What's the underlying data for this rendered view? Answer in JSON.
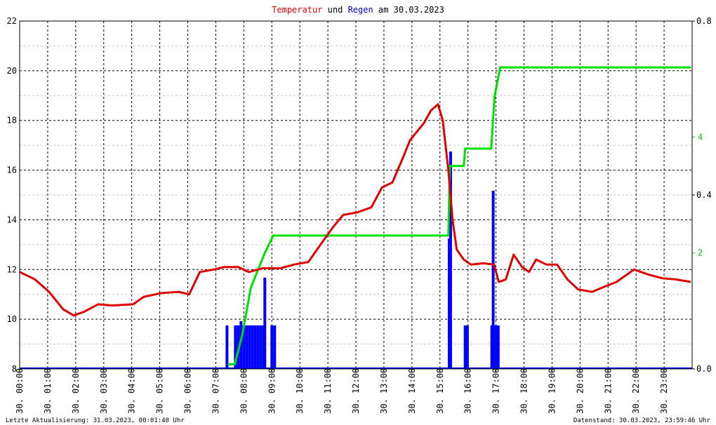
{
  "chart_data": {
    "type": "line",
    "title_parts": [
      {
        "text": "Temperatur",
        "color": "#e00000"
      },
      {
        "text": "und",
        "color": "#000000"
      },
      {
        "text": "Regen",
        "color": "#0000c0"
      },
      {
        "text": "am 30.03.2023",
        "color": "#000000"
      }
    ],
    "footer_left": "Letzte Aktualisierung: 31.03.2023, 00:01:40 Uhr",
    "footer_right": "Datenstand: 30.03.2023, 23:59:46 Uhr",
    "xlim": [
      0,
      24
    ],
    "xticks": [
      {
        "value": 0,
        "label": "30. 00:00"
      },
      {
        "value": 1,
        "label": "30. 01:00"
      },
      {
        "value": 2,
        "label": "30. 02:00"
      },
      {
        "value": 3,
        "label": "30. 03:00"
      },
      {
        "value": 4,
        "label": "30. 04:00"
      },
      {
        "value": 5,
        "label": "30. 05:00"
      },
      {
        "value": 6,
        "label": "30. 06:00"
      },
      {
        "value": 7,
        "label": "30. 07:00"
      },
      {
        "value": 8,
        "label": "30. 08:00"
      },
      {
        "value": 9,
        "label": "30. 09:00"
      },
      {
        "value": 10,
        "label": "30. 10:00"
      },
      {
        "value": 11,
        "label": "30. 11:00"
      },
      {
        "value": 12,
        "label": "30. 12:00"
      },
      {
        "value": 13,
        "label": "30. 13:00"
      },
      {
        "value": 14,
        "label": "30. 14:00"
      },
      {
        "value": 15,
        "label": "30. 15:00"
      },
      {
        "value": 16,
        "label": "30. 16:00"
      },
      {
        "value": 17,
        "label": "30. 17:00"
      },
      {
        "value": 18,
        "label": "30. 18:00"
      },
      {
        "value": 19,
        "label": "30. 19:00"
      },
      {
        "value": 20,
        "label": "30. 20:00"
      },
      {
        "value": 21,
        "label": "30. 21:00"
      },
      {
        "value": 22,
        "label": "30. 22:00"
      },
      {
        "value": 23,
        "label": "30. 23:00"
      }
    ],
    "ylim": [
      8,
      22
    ],
    "yticks": [
      8,
      10,
      12,
      14,
      16,
      18,
      20,
      22
    ],
    "yminorticks": [
      9,
      11,
      13,
      15,
      17,
      19,
      21
    ],
    "y2lim": [
      0,
      0.8
    ],
    "y2ticks": [
      {
        "value": 0,
        "label": "0.0"
      },
      0.4,
      0.8
    ],
    "y3lim": [
      0,
      6
    ],
    "y3ticks": [
      2,
      4
    ],
    "y3color": "#00cc00",
    "grid": true,
    "series": [
      {
        "type": "line",
        "axis": "y",
        "color": "#e00000",
        "x": [
          0,
          0.55,
          1.05,
          1.55,
          1.93,
          2.3,
          2.8,
          3.3,
          4.05,
          4.43,
          5.05,
          5.68,
          6.05,
          6.43,
          6.93,
          7.3,
          7.8,
          8.18,
          8.68,
          9.3,
          9.8,
          10.3,
          10.8,
          11.18,
          11.55,
          12.05,
          12.55,
          12.93,
          13.3,
          13.68,
          13.93,
          14.43,
          14.68,
          14.93,
          15.1,
          15.3,
          15.45,
          15.6,
          15.85,
          16.1,
          16.55,
          16.93,
          17.1,
          17.35,
          17.63,
          17.93,
          18.18,
          18.43,
          18.8,
          19.18,
          19.55,
          19.93,
          20.43,
          20.85,
          21.3,
          21.93,
          22.43,
          22.93,
          23.43,
          23.95
        ],
        "values": [
          11.9,
          11.6,
          11.1,
          10.4,
          10.15,
          10.3,
          10.6,
          10.55,
          10.6,
          10.9,
          11.05,
          11.1,
          11.0,
          11.9,
          12.0,
          12.1,
          12.1,
          11.9,
          12.05,
          12.05,
          12.2,
          12.3,
          13.1,
          13.7,
          14.2,
          14.3,
          14.5,
          15.3,
          15.5,
          16.5,
          17.2,
          17.9,
          18.4,
          18.65,
          18.0,
          16.0,
          14.0,
          12.8,
          12.4,
          12.2,
          12.25,
          12.2,
          11.5,
          11.6,
          12.6,
          12.1,
          11.9,
          12.4,
          12.2,
          12.2,
          11.6,
          11.2,
          11.1,
          11.3,
          11.5,
          12.0,
          11.8,
          11.65,
          11.6,
          11.5
        ]
      },
      {
        "type": "bar",
        "axis": "y2",
        "color": "#0000ff",
        "x": [
          7.4,
          7.7,
          7.8,
          7.9,
          8.0,
          8.1,
          8.2,
          8.3,
          8.4,
          8.5,
          8.6,
          8.7,
          8.75,
          9.0,
          9.1,
          15.33,
          15.38,
          15.9,
          15.98,
          16.85,
          16.9,
          17.0,
          17.08
        ],
        "values": [
          0.1,
          0.1,
          0.1,
          0.11,
          0.1,
          0.1,
          0.1,
          0.1,
          0.1,
          0.1,
          0.1,
          0.1,
          0.21,
          0.1,
          0.1,
          0.3,
          0.5,
          0.1,
          0.1,
          0.1,
          0.41,
          0.1,
          0.1
        ]
      },
      {
        "type": "line",
        "axis": "y3",
        "color": "#00e000",
        "x": [
          7.43,
          7.68,
          7.95,
          8.25,
          8.5,
          8.75,
          9.05,
          15.3,
          15.35,
          15.85,
          15.9,
          16.83,
          16.95,
          17.15,
          23.95
        ],
        "values": [
          0.08,
          0.08,
          0.6,
          1.4,
          1.7,
          2.0,
          2.3,
          2.3,
          3.5,
          3.5,
          3.8,
          3.8,
          4.7,
          5.2,
          5.2
        ]
      }
    ]
  }
}
